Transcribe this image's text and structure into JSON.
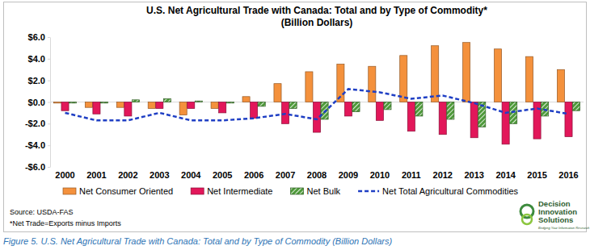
{
  "chart_data": {
    "type": "bar",
    "title": "U.S. Net Agricultural Trade with Canada: Total and by Type of Commodity*",
    "subtitle": "(Billion Dollars)",
    "categories": [
      "2000",
      "2001",
      "2002",
      "2003",
      "2004",
      "2005",
      "2006",
      "2007",
      "2008",
      "2009",
      "2010",
      "2011",
      "2012",
      "2013",
      "2014",
      "2015",
      "2016"
    ],
    "series": [
      {
        "name": "Net Consumer Oriented",
        "color": "#f4913c",
        "type": "bar",
        "values": [
          -0.1,
          -0.5,
          -0.5,
          -0.6,
          -1.2,
          -0.6,
          0.5,
          1.7,
          2.8,
          3.5,
          3.3,
          4.3,
          5.2,
          5.5,
          4.9,
          4.2,
          3.0
        ]
      },
      {
        "name": "Net Intermediate",
        "color": "#e2175a",
        "type": "bar",
        "values": [
          -0.8,
          -1.1,
          -1.3,
          -0.6,
          -0.6,
          -1.0,
          -1.5,
          -2.0,
          -2.8,
          -1.3,
          -1.7,
          -2.7,
          -3.0,
          -3.3,
          -3.9,
          -3.4,
          -3.2
        ]
      },
      {
        "name": "Net Bulk",
        "color": "#4e9a3a",
        "type": "bar",
        "values": [
          -0.1,
          -0.1,
          0.2,
          0.3,
          0.1,
          -0.1,
          -0.4,
          -0.6,
          -1.6,
          -0.9,
          -0.7,
          -1.3,
          -1.6,
          -2.3,
          -2.0,
          -1.3,
          -0.8
        ]
      },
      {
        "name": "Net Total Agricultural Commodities",
        "color": "#1f3fc4",
        "type": "line",
        "line_style": "dashed",
        "values": [
          -1.0,
          -1.7,
          -1.7,
          -1.0,
          -1.7,
          -1.7,
          -1.5,
          -1.1,
          -1.6,
          1.2,
          0.9,
          0.3,
          0.6,
          -0.1,
          -1.0,
          -0.6,
          -1.1
        ]
      }
    ],
    "ylim": [
      -6,
      6
    ],
    "yticks": [
      {
        "value": -6,
        "label": "-$6.0"
      },
      {
        "value": -4,
        "label": "-$4.0"
      },
      {
        "value": -2,
        "label": "-$2.0"
      },
      {
        "value": 0,
        "label": "$0.0"
      },
      {
        "value": 2,
        "label": "$2.0"
      },
      {
        "value": 4,
        "label": "$4.0"
      },
      {
        "value": 6,
        "label": "$6.0"
      }
    ],
    "grid": false,
    "legend": "bottom",
    "source": "Source: USDA-FAS",
    "note": "*Net Trade=Exports minus Imports",
    "logo": {
      "lines": [
        "Decision",
        "Innovation",
        "Solutions"
      ],
      "tagline": "Bridging Your Information Research Needs"
    },
    "caption": "Figure 5. U.S. Net Agricultural Trade with Canada: Total and by Type of Commodity (Billion Dollars)"
  }
}
